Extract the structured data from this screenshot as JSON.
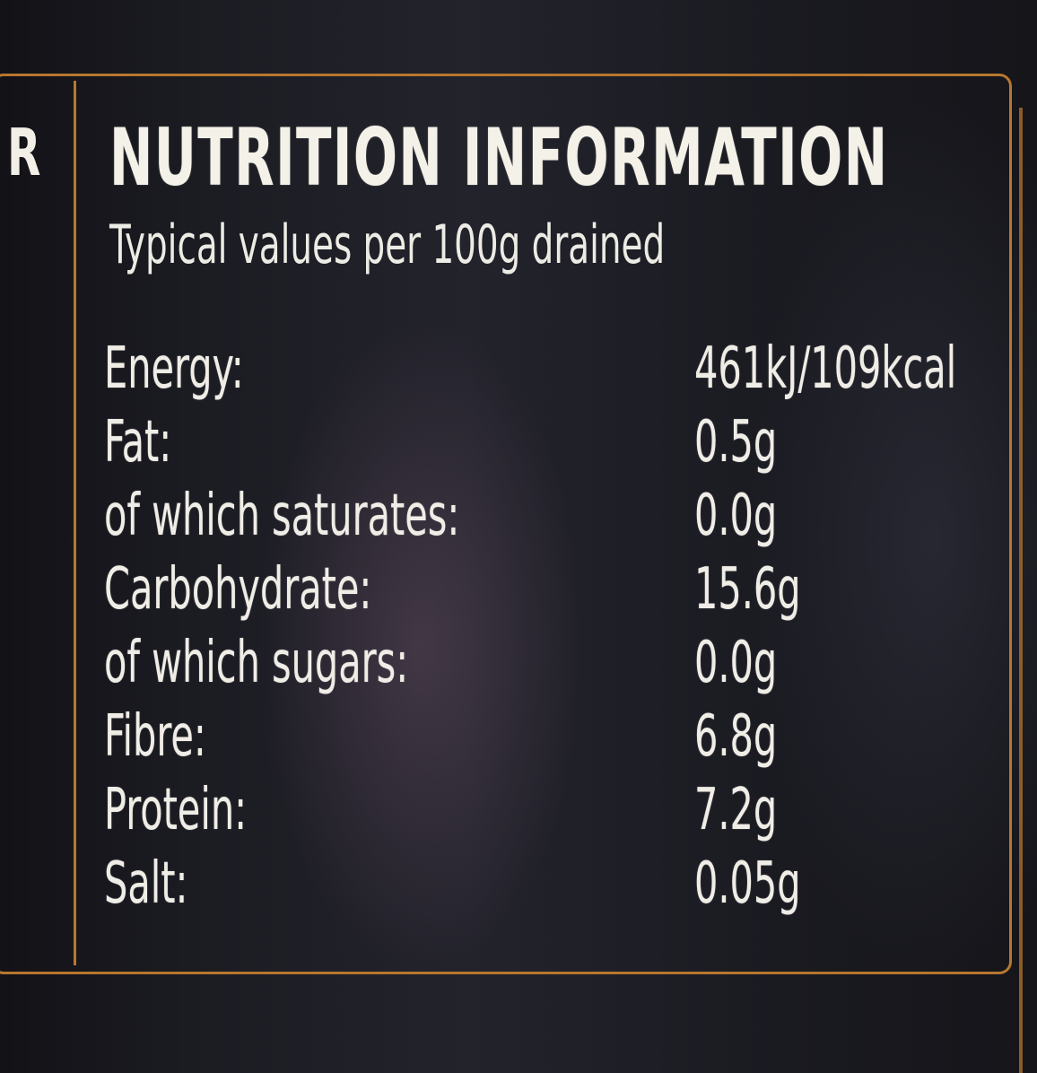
{
  "side_panel": {
    "cut_letter": "R"
  },
  "nutrition": {
    "title": "NUTRITION INFORMATION",
    "subtitle": "Typical values per 100g drained",
    "rows": [
      {
        "label": "Energy:",
        "value": "461kJ/109kcal"
      },
      {
        "label": "Fat:",
        "value": "0.5g"
      },
      {
        "label": "of which saturates:",
        "value": "0.0g"
      },
      {
        "label": "Carbohydrate:",
        "value": "15.6g"
      },
      {
        "label": "of which sugars:",
        "value": "0.0g"
      },
      {
        "label": "Fibre:",
        "value": "6.8g"
      },
      {
        "label": "Protein:",
        "value": "7.2g"
      },
      {
        "label": "Salt:",
        "value": "0.05g"
      }
    ]
  },
  "colors": {
    "background": "#1d1d24",
    "frame": "#b7772e",
    "text": "#efede6"
  }
}
